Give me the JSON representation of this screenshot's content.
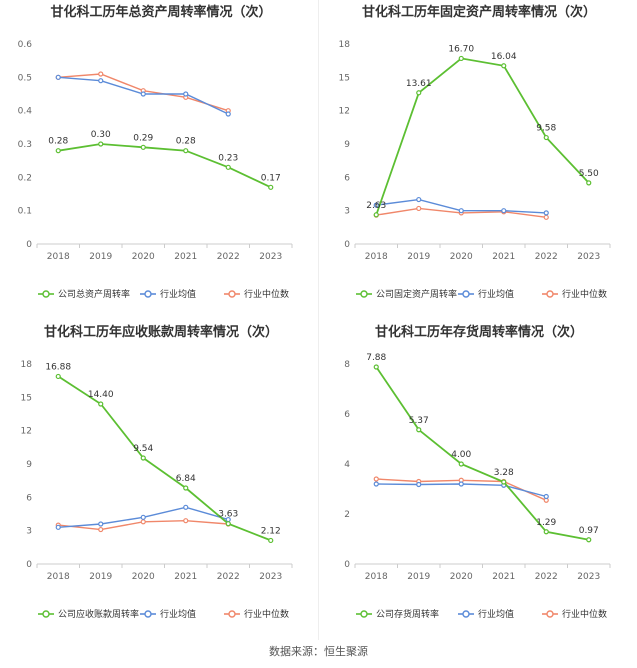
{
  "source_text": "数据来源：恒生聚源",
  "colors": {
    "company": "#5cbf32",
    "industry_avg": "#5b8bd8",
    "industry_median": "#f0876a",
    "axis": "#cccccc",
    "grid": "#eeeeee"
  },
  "chart_data": [
    {
      "type": "line",
      "title": "甘化科工历年总资产周转率情况（次）",
      "categories": [
        "2018",
        "2019",
        "2020",
        "2021",
        "2022",
        "2023"
      ],
      "ylim": [
        0,
        0.6
      ],
      "yticks": [
        "0",
        "0.1",
        "0.2",
        "0.3",
        "0.4",
        "0.5",
        "0.6"
      ],
      "grid": false,
      "legend": "bottom",
      "series": [
        {
          "name": "公司总资产周转率",
          "values": [
            0.28,
            0.3,
            0.29,
            0.28,
            0.23,
            0.17
          ],
          "labels": [
            "0.28",
            "0.30",
            "0.29",
            "0.28",
            "0.23",
            "0.17"
          ]
        },
        {
          "name": "行业均值",
          "values": [
            0.5,
            0.49,
            0.45,
            0.45,
            0.39,
            null
          ]
        },
        {
          "name": "行业中位数",
          "values": [
            0.5,
            0.51,
            0.46,
            0.44,
            0.4,
            null
          ]
        }
      ]
    },
    {
      "type": "line",
      "title": "甘化科工历年固定资产周转率情况（次）",
      "categories": [
        "2018",
        "2019",
        "2020",
        "2021",
        "2022",
        "2023"
      ],
      "ylim": [
        0,
        18
      ],
      "yticks": [
        "0",
        "3",
        "6",
        "9",
        "12",
        "15",
        "18"
      ],
      "grid": false,
      "legend": "bottom",
      "series": [
        {
          "name": "公司固定资产周转率",
          "values": [
            2.63,
            13.61,
            16.7,
            16.04,
            9.58,
            5.5
          ],
          "labels": [
            "2.63",
            "13.61",
            "16.70",
            "16.04",
            "9.58",
            "5.50"
          ]
        },
        {
          "name": "行业均值",
          "values": [
            3.5,
            4.0,
            3.0,
            3.0,
            2.8,
            null
          ]
        },
        {
          "name": "行业中位数",
          "values": [
            2.6,
            3.2,
            2.8,
            2.9,
            2.4,
            null
          ]
        }
      ]
    },
    {
      "type": "line",
      "title": "甘化科工历年应收账款周转率情况（次）",
      "categories": [
        "2018",
        "2019",
        "2020",
        "2021",
        "2022",
        "2023"
      ],
      "ylim": [
        0,
        18
      ],
      "yticks": [
        "0",
        "3",
        "6",
        "9",
        "12",
        "15",
        "18"
      ],
      "grid": false,
      "legend": "bottom",
      "series": [
        {
          "name": "公司应收账款周转率",
          "values": [
            16.88,
            14.4,
            9.54,
            6.84,
            3.63,
            2.12
          ],
          "labels": [
            "16.88",
            "14.40",
            "9.54",
            "6.84",
            "3.63",
            "2.12"
          ]
        },
        {
          "name": "行业均值",
          "values": [
            3.3,
            3.6,
            4.2,
            5.1,
            4.0,
            null
          ]
        },
        {
          "name": "行业中位数",
          "values": [
            3.5,
            3.1,
            3.8,
            3.9,
            3.6,
            null
          ]
        }
      ]
    },
    {
      "type": "line",
      "title": "甘化科工历年存货周转率情况（次）",
      "categories": [
        "2018",
        "2019",
        "2020",
        "2021",
        "2022",
        "2023"
      ],
      "ylim": [
        0,
        8
      ],
      "yticks": [
        "0",
        "2",
        "4",
        "6",
        "8"
      ],
      "grid": false,
      "legend": "bottom",
      "series": [
        {
          "name": "公司存货周转率",
          "values": [
            7.88,
            5.37,
            4.0,
            3.28,
            1.29,
            0.97
          ],
          "labels": [
            "7.88",
            "5.37",
            "4.00",
            "3.28",
            "1.29",
            "0.97"
          ]
        },
        {
          "name": "行业均值",
          "values": [
            3.2,
            3.18,
            3.2,
            3.15,
            2.7,
            null
          ]
        },
        {
          "name": "行业中位数",
          "values": [
            3.4,
            3.3,
            3.35,
            3.3,
            2.55,
            null
          ]
        }
      ]
    }
  ]
}
